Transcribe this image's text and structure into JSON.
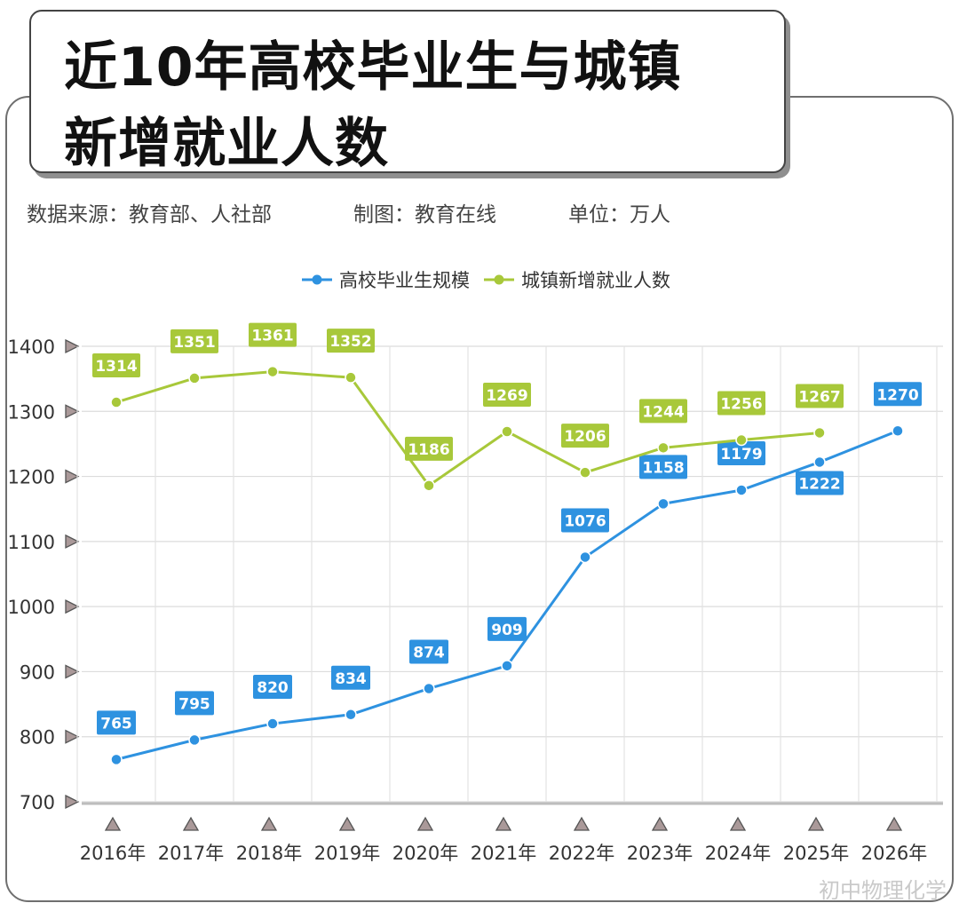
{
  "title": {
    "line1": "近10年高校毕业生与城镇",
    "line2": "新增就业人数"
  },
  "meta": {
    "source": "数据来源：教育部、人社部",
    "maker": "制图：教育在线",
    "unit": "单位：万人"
  },
  "watermark": "初中物理化学",
  "chart_data": {
    "type": "line",
    "categories": [
      "2016年",
      "2017年",
      "2018年",
      "2019年",
      "2020年",
      "2021年",
      "2022年",
      "2023年",
      "2024年",
      "2025年",
      "2026年"
    ],
    "series": [
      {
        "name": "高校毕业生规模",
        "color": "#2e92e0",
        "values": [
          765,
          795,
          820,
          834,
          874,
          909,
          1076,
          1158,
          1179,
          1222,
          1270
        ]
      },
      {
        "name": "城镇新增就业人数",
        "color": "#a8c83a",
        "values": [
          1314,
          1351,
          1361,
          1352,
          1186,
          1269,
          1206,
          1244,
          1256,
          1267,
          null
        ]
      }
    ],
    "ylim": [
      700,
      1400
    ],
    "yticks": [
      700,
      800,
      900,
      1000,
      1100,
      1200,
      1300,
      1400
    ],
    "grid": true,
    "legend": "top-center"
  }
}
